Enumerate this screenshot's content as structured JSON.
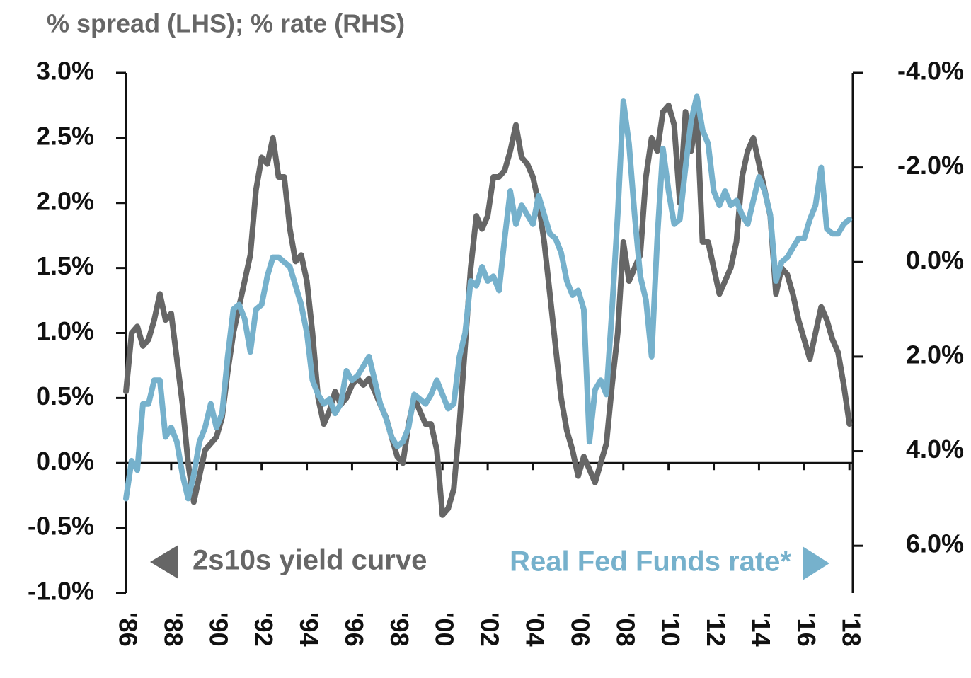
{
  "chart_data": {
    "type": "line",
    "title": "% spread (LHS); % rate (RHS)",
    "annotations": [
      "2s10s yield curve",
      "Real Fed Funds rate*"
    ],
    "x": [
      1986,
      1986.25,
      1986.5,
      1986.75,
      1987,
      1987.25,
      1987.5,
      1987.75,
      1988,
      1988.25,
      1988.5,
      1988.75,
      1989,
      1989.25,
      1989.5,
      1989.75,
      1990,
      1990.25,
      1990.5,
      1990.75,
      1991,
      1991.25,
      1991.5,
      1991.75,
      1992,
      1992.25,
      1992.5,
      1992.75,
      1993,
      1993.25,
      1993.5,
      1993.75,
      1994,
      1994.25,
      1994.5,
      1994.75,
      1995,
      1995.25,
      1995.5,
      1995.75,
      1996,
      1996.25,
      1996.5,
      1996.75,
      1997,
      1997.25,
      1997.5,
      1997.75,
      1998,
      1998.25,
      1998.5,
      1998.75,
      1999,
      1999.25,
      1999.5,
      1999.75,
      2000,
      2000.25,
      2000.5,
      2000.75,
      2001,
      2001.25,
      2001.5,
      2001.75,
      2002,
      2002.25,
      2002.5,
      2002.75,
      2003,
      2003.25,
      2003.5,
      2003.75,
      2004,
      2004.25,
      2004.5,
      2004.75,
      2005,
      2005.25,
      2005.5,
      2005.75,
      2006,
      2006.25,
      2006.5,
      2006.75,
      2007,
      2007.25,
      2007.5,
      2007.75,
      2008,
      2008.25,
      2008.5,
      2008.75,
      2009,
      2009.25,
      2009.5,
      2009.75,
      2010,
      2010.25,
      2010.5,
      2010.75,
      2011,
      2011.25,
      2011.5,
      2011.75,
      2012,
      2012.25,
      2012.5,
      2012.75,
      2013,
      2013.25,
      2013.5,
      2013.75,
      2014,
      2014.25,
      2014.5,
      2014.75,
      2015,
      2015.25,
      2015.5,
      2015.75,
      2016,
      2016.25,
      2016.5,
      2016.75,
      2017,
      2017.25,
      2017.5,
      2017.75,
      2018
    ],
    "series": [
      {
        "name": "2s10s yield curve",
        "color": "#666666",
        "axis": "y",
        "values": [
          0.55,
          1.0,
          1.05,
          0.9,
          0.95,
          1.1,
          1.3,
          1.1,
          1.15,
          0.8,
          0.45,
          0.0,
          -0.3,
          -0.1,
          0.1,
          0.15,
          0.2,
          0.35,
          0.7,
          1.0,
          1.2,
          1.4,
          1.6,
          2.1,
          2.35,
          2.3,
          2.5,
          2.2,
          2.2,
          1.8,
          1.55,
          1.6,
          1.4,
          1.0,
          0.5,
          0.3,
          0.4,
          0.55,
          0.45,
          0.5,
          0.6,
          0.65,
          0.6,
          0.65,
          0.55,
          0.45,
          0.35,
          0.2,
          0.05,
          0.0,
          0.3,
          0.5,
          0.4,
          0.3,
          0.3,
          0.1,
          -0.4,
          -0.35,
          -0.2,
          0.3,
          0.9,
          1.5,
          1.9,
          1.8,
          1.9,
          2.2,
          2.2,
          2.25,
          2.4,
          2.6,
          2.35,
          2.3,
          2.2,
          2.0,
          1.7,
          1.3,
          0.9,
          0.5,
          0.25,
          0.1,
          -0.1,
          0.05,
          -0.05,
          -0.15,
          0.0,
          0.15,
          0.6,
          1.0,
          1.7,
          1.4,
          1.5,
          1.6,
          2.2,
          2.5,
          2.4,
          2.7,
          2.75,
          2.6,
          2.0,
          2.7,
          2.4,
          2.7,
          1.7,
          1.7,
          1.5,
          1.3,
          1.4,
          1.5,
          1.7,
          2.2,
          2.4,
          2.5,
          2.3,
          2.1,
          1.9,
          1.3,
          1.5,
          1.45,
          1.3,
          1.1,
          0.95,
          0.8,
          1.0,
          1.2,
          1.1,
          0.95,
          0.85,
          0.6,
          0.3
        ]
      },
      {
        "name": "Real Fed Funds rate*",
        "color": "#76b1cc",
        "axis": "y2",
        "values": [
          5.0,
          4.2,
          4.4,
          3.0,
          3.0,
          2.5,
          2.5,
          3.7,
          3.5,
          3.8,
          4.5,
          5.0,
          4.5,
          3.8,
          3.5,
          3.0,
          3.5,
          3.2,
          2.0,
          1.0,
          0.9,
          1.2,
          1.9,
          1.0,
          0.9,
          0.3,
          -0.1,
          -0.1,
          0.0,
          0.1,
          0.5,
          0.9,
          1.5,
          2.5,
          2.8,
          3.0,
          2.9,
          3.2,
          3.0,
          2.3,
          2.5,
          2.4,
          2.2,
          2.0,
          2.5,
          3.0,
          3.3,
          3.7,
          3.9,
          3.8,
          3.5,
          2.8,
          2.9,
          3.0,
          2.8,
          2.5,
          2.8,
          3.1,
          3.0,
          2.0,
          1.5,
          0.4,
          0.5,
          0.1,
          0.4,
          0.3,
          0.6,
          -0.5,
          -1.5,
          -0.8,
          -1.2,
          -1.0,
          -0.8,
          -1.4,
          -1.0,
          -0.6,
          -0.5,
          -0.2,
          0.4,
          0.7,
          0.6,
          1.0,
          3.8,
          2.7,
          2.5,
          2.8,
          1.0,
          -1.0,
          -3.4,
          -2.5,
          -1.0,
          0.3,
          0.8,
          2.0,
          -0.5,
          -2.4,
          -1.5,
          -0.8,
          -0.9,
          -2.0,
          -3.0,
          -3.5,
          -2.8,
          -2.5,
          -1.5,
          -1.2,
          -1.5,
          -1.2,
          -1.3,
          -1.0,
          -0.8,
          -1.3,
          -1.8,
          -1.5,
          -1.0,
          0.4,
          0.0,
          -0.1,
          -0.3,
          -0.5,
          -0.5,
          -0.9,
          -1.2,
          -2.0,
          -0.7,
          -0.6,
          -0.6,
          -0.8,
          -0.9
        ]
      }
    ],
    "xlim": [
      1986,
      2018.15
    ],
    "xticks": [
      {
        "value": 1986,
        "label": "'86"
      },
      {
        "value": 1988,
        "label": "'88"
      },
      {
        "value": 1990,
        "label": "'90"
      },
      {
        "value": 1992,
        "label": "'92"
      },
      {
        "value": 1994,
        "label": "'94"
      },
      {
        "value": 1996,
        "label": "'96"
      },
      {
        "value": 1998,
        "label": "'98"
      },
      {
        "value": 2000,
        "label": "'00"
      },
      {
        "value": 2002,
        "label": "'02"
      },
      {
        "value": 2004,
        "label": "'04"
      },
      {
        "value": 2006,
        "label": "'06"
      },
      {
        "value": 2008,
        "label": "'08"
      },
      {
        "value": 2010,
        "label": "'10"
      },
      {
        "value": 2012,
        "label": "'12"
      },
      {
        "value": 2014,
        "label": "'14"
      },
      {
        "value": 2016,
        "label": "'16"
      },
      {
        "value": 2018,
        "label": "'18"
      }
    ],
    "ylim": [
      -1,
      3
    ],
    "yticks": [
      {
        "value": 3,
        "label": "3.0%"
      },
      {
        "value": 2.5,
        "label": "2.5%"
      },
      {
        "value": 2,
        "label": "2.0%"
      },
      {
        "value": 1.5,
        "label": "1.5%"
      },
      {
        "value": 1,
        "label": "1.0%"
      },
      {
        "value": 0.5,
        "label": "0.5%"
      },
      {
        "value": 0,
        "label": "0.0%"
      },
      {
        "value": -0.5,
        "label": "-0.5%"
      },
      {
        "value": -1,
        "label": "-1.0%"
      }
    ],
    "y2lim": [
      7,
      -4
    ],
    "y2ticks": [
      {
        "value": -4,
        "label": "-4.0%"
      },
      {
        "value": -2,
        "label": "-2.0%"
      },
      {
        "value": 0,
        "label": "0.0%"
      },
      {
        "value": 2,
        "label": "2.0%"
      },
      {
        "value": 4,
        "label": "4.0%"
      },
      {
        "value": 6,
        "label": "6.0%"
      }
    ],
    "grid": false
  }
}
